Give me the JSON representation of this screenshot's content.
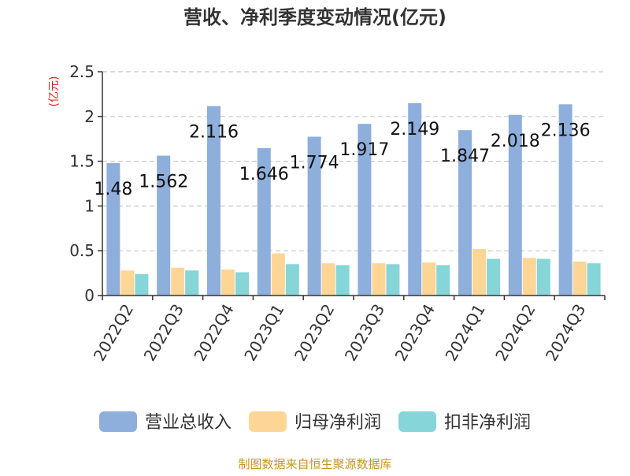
{
  "chart_data": {
    "type": "bar",
    "title": "营收、净利季度变动情况(亿元)",
    "ylabel": "(亿元)",
    "xlabel": "",
    "ylim": [
      0,
      2.5
    ],
    "yticks": [
      0,
      0.5,
      1,
      1.5,
      2,
      2.5
    ],
    "ytick_labels": [
      "0",
      "0.5",
      "1",
      "1.5",
      "2",
      "2.5"
    ],
    "grid": true,
    "legend_position": "bottom",
    "categories": [
      "2022Q2",
      "2022Q3",
      "2022Q4",
      "2023Q1",
      "2023Q2",
      "2023Q3",
      "2023Q4",
      "2024Q1",
      "2024Q2",
      "2024Q3"
    ],
    "series": [
      {
        "name": "营业总收入",
        "color": "#8eaedc",
        "values": [
          1.48,
          1.562,
          2.116,
          1.646,
          1.774,
          1.917,
          2.149,
          1.847,
          2.018,
          2.136
        ],
        "labels": [
          "1.48",
          "1.562",
          "2.116",
          "1.646",
          "1.774",
          "1.917",
          "2.149",
          "1.847",
          "2.018",
          "2.136"
        ]
      },
      {
        "name": "归母净利润",
        "color": "#fdd695",
        "values": [
          0.28,
          0.31,
          0.29,
          0.47,
          0.36,
          0.36,
          0.37,
          0.52,
          0.42,
          0.38
        ]
      },
      {
        "name": "扣非净利润",
        "color": "#86d5d8",
        "values": [
          0.24,
          0.28,
          0.26,
          0.35,
          0.34,
          0.35,
          0.34,
          0.41,
          0.41,
          0.36
        ]
      }
    ],
    "source": "制图数据来自恒生聚源数据库",
    "colors": {
      "title": "#333333",
      "ylabel": "#e0201c",
      "axis": "#333333",
      "grid": "#c8c8c8",
      "source": "#c8961e"
    }
  }
}
